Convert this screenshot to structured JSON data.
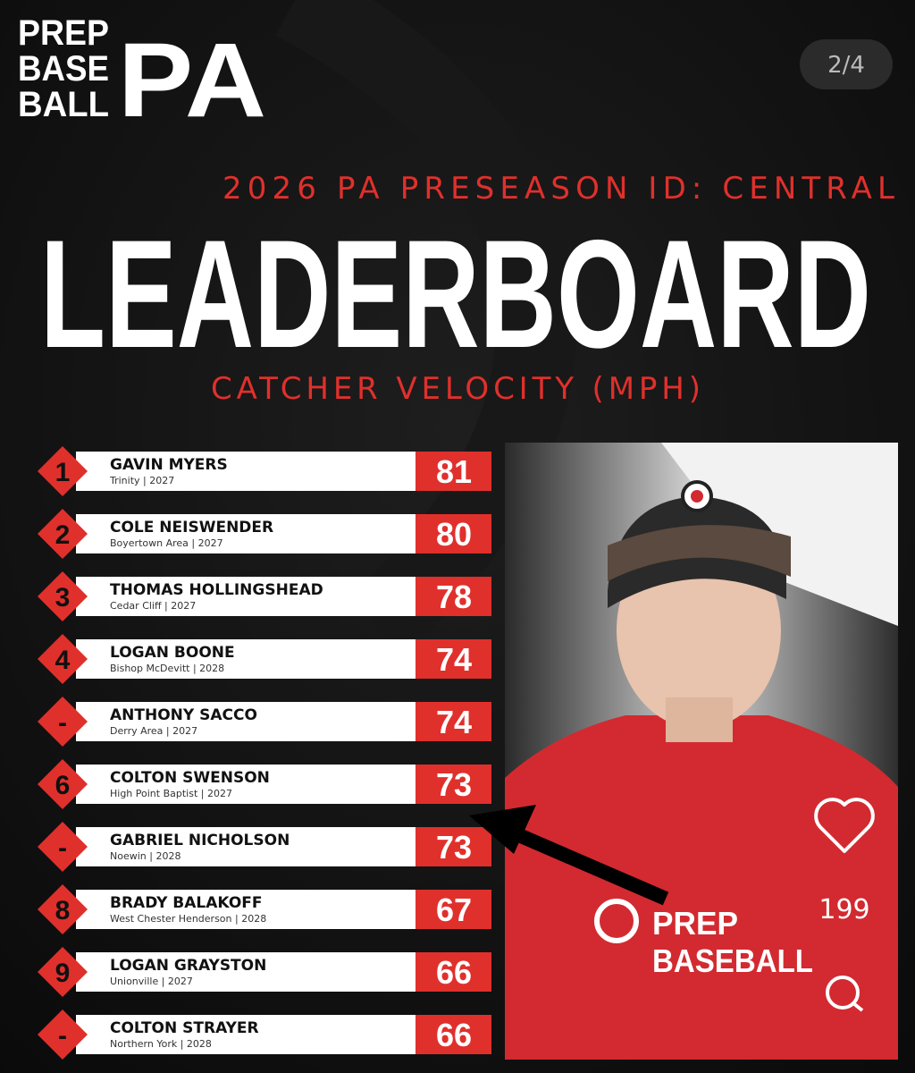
{
  "logo": {
    "lines": [
      "PREP",
      "BASE",
      "BALL"
    ],
    "mark": "PA"
  },
  "page_indicator": "2/4",
  "header": {
    "event": "2026 PA PRESEASON ID: CENTRAL",
    "title": "LEADERBOARD",
    "metric": "CATCHER VELOCITY (MPH)"
  },
  "leaderboard": {
    "rows": [
      {
        "rank": "1",
        "name": "GAVIN MYERS",
        "detail": "Trinity | 2027",
        "value": 81
      },
      {
        "rank": "2",
        "name": "COLE NEISWENDER",
        "detail": "Boyertown Area | 2027",
        "value": 80
      },
      {
        "rank": "3",
        "name": "THOMAS HOLLINGSHEAD",
        "detail": "Cedar Cliff | 2027",
        "value": 78
      },
      {
        "rank": "4",
        "name": "LOGAN BOONE",
        "detail": "Bishop McDevitt | 2028",
        "value": 74
      },
      {
        "rank": "-",
        "name": "ANTHONY SACCO",
        "detail": "Derry Area | 2027",
        "value": 74
      },
      {
        "rank": "6",
        "name": "COLTON SWENSON",
        "detail": "High Point Baptist | 2027",
        "value": 73
      },
      {
        "rank": "-",
        "name": "GABRIEL NICHOLSON",
        "detail": "Noewin | 2028",
        "value": 73
      },
      {
        "rank": "8",
        "name": "BRADY BALAKOFF",
        "detail": "West Chester Henderson | 2028",
        "value": 67
      },
      {
        "rank": "9",
        "name": "LOGAN GRAYSTON",
        "detail": "Unionville | 2027",
        "value": 66
      },
      {
        "rank": "-",
        "name": "COLTON STRAYER",
        "detail": "Northern York | 2028",
        "value": 66
      }
    ]
  },
  "photo": {
    "shirt_text": [
      "PREP",
      "BASEBALL"
    ]
  },
  "actions": {
    "likes": "199"
  }
}
